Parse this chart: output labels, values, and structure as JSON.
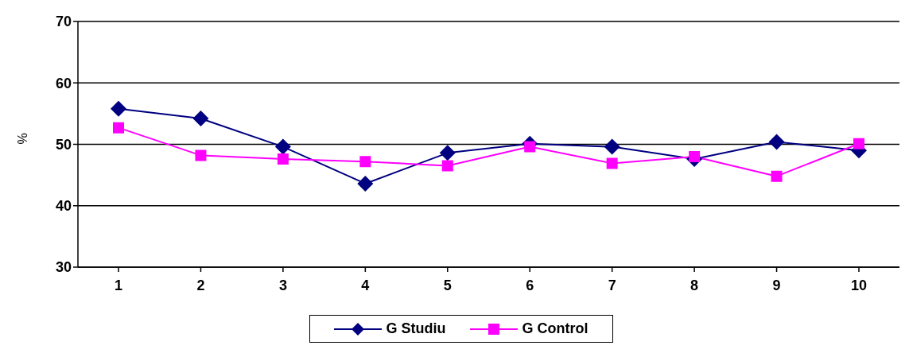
{
  "chart_data": {
    "type": "line",
    "ylabel": "%",
    "categories": [
      "1",
      "2",
      "3",
      "4",
      "5",
      "6",
      "7",
      "8",
      "9",
      "10"
    ],
    "series": [
      {
        "name": "G Studiu",
        "color": "#000080",
        "marker": "diamond",
        "values": [
          55.8,
          54.2,
          49.6,
          43.6,
          48.6,
          50.1,
          49.6,
          47.6,
          50.4,
          49.0
        ]
      },
      {
        "name": "G Control",
        "color": "#ff00ff",
        "marker": "square",
        "values": [
          52.7,
          48.2,
          47.6,
          47.2,
          46.5,
          49.6,
          46.9,
          48.0,
          44.8,
          50.1
        ]
      }
    ],
    "ylim": [
      30,
      70
    ],
    "yticks": [
      30,
      40,
      50,
      60,
      70
    ],
    "grid": "y",
    "legend": "bottom"
  }
}
